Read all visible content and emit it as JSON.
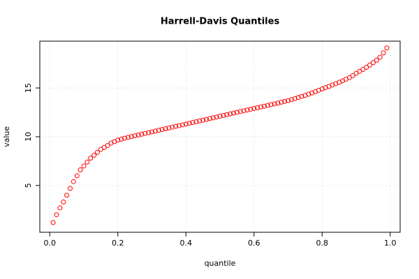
{
  "chart_data": {
    "type": "scatter",
    "title": "Harrell-Davis Quantiles",
    "x_label": "quantile",
    "y_label": "value",
    "x": [
      0.01,
      0.02,
      0.03,
      0.04,
      0.05,
      0.06,
      0.07,
      0.08,
      0.09,
      0.1,
      0.11,
      0.12,
      0.13,
      0.14,
      0.15,
      0.16,
      0.17,
      0.18,
      0.19,
      0.2,
      0.21,
      0.22,
      0.23,
      0.24,
      0.25,
      0.26,
      0.27,
      0.28,
      0.29,
      0.3,
      0.31,
      0.32,
      0.33,
      0.34,
      0.35,
      0.36,
      0.37,
      0.38,
      0.39,
      0.4,
      0.41,
      0.42,
      0.43,
      0.44,
      0.45,
      0.46,
      0.47,
      0.48,
      0.49,
      0.5,
      0.51,
      0.52,
      0.53,
      0.54,
      0.55,
      0.56,
      0.57,
      0.58,
      0.59,
      0.6,
      0.61,
      0.62,
      0.63,
      0.64,
      0.65,
      0.66,
      0.67,
      0.68,
      0.69,
      0.7,
      0.71,
      0.72,
      0.73,
      0.74,
      0.75,
      0.76,
      0.77,
      0.78,
      0.79,
      0.8,
      0.81,
      0.82,
      0.83,
      0.84,
      0.85,
      0.86,
      0.87,
      0.88,
      0.89,
      0.9,
      0.91,
      0.92,
      0.93,
      0.94,
      0.95,
      0.96,
      0.97,
      0.98,
      0.99
    ],
    "values": [
      1.2,
      2.0,
      2.7,
      3.3,
      4.0,
      4.7,
      5.4,
      6.0,
      6.6,
      7.0,
      7.4,
      7.8,
      8.1,
      8.4,
      8.7,
      8.9,
      9.1,
      9.35,
      9.5,
      9.65,
      9.75,
      9.85,
      9.94,
      10.02,
      10.1,
      10.18,
      10.26,
      10.34,
      10.42,
      10.5,
      10.58,
      10.66,
      10.74,
      10.82,
      10.9,
      10.98,
      11.06,
      11.14,
      11.22,
      11.3,
      11.38,
      11.46,
      11.54,
      11.62,
      11.7,
      11.78,
      11.86,
      11.94,
      12.02,
      12.1,
      12.18,
      12.26,
      12.34,
      12.42,
      12.5,
      12.58,
      12.66,
      12.74,
      12.82,
      12.9,
      12.97,
      13.05,
      13.13,
      13.21,
      13.29,
      13.37,
      13.45,
      13.54,
      13.62,
      13.7,
      13.8,
      13.91,
      14.02,
      14.13,
      14.24,
      14.36,
      14.49,
      14.62,
      14.76,
      14.9,
      15.03,
      15.16,
      15.3,
      15.44,
      15.58,
      15.73,
      15.89,
      16.05,
      16.27,
      16.5,
      16.7,
      16.9,
      17.12,
      17.35,
      17.6,
      17.85,
      18.15,
      18.6,
      19.1
    ],
    "color": "#ff0000",
    "xlim": [
      -0.0292,
      1.0292
    ],
    "ylim": [
      0.2,
      19.8
    ],
    "xticks": [
      {
        "value": 0,
        "label": "0.0"
      },
      0.2,
      0.4,
      0.6,
      0.8,
      {
        "value": 1,
        "label": "1.0"
      }
    ],
    "yticks": [
      5,
      10,
      15
    ],
    "grid": true
  }
}
